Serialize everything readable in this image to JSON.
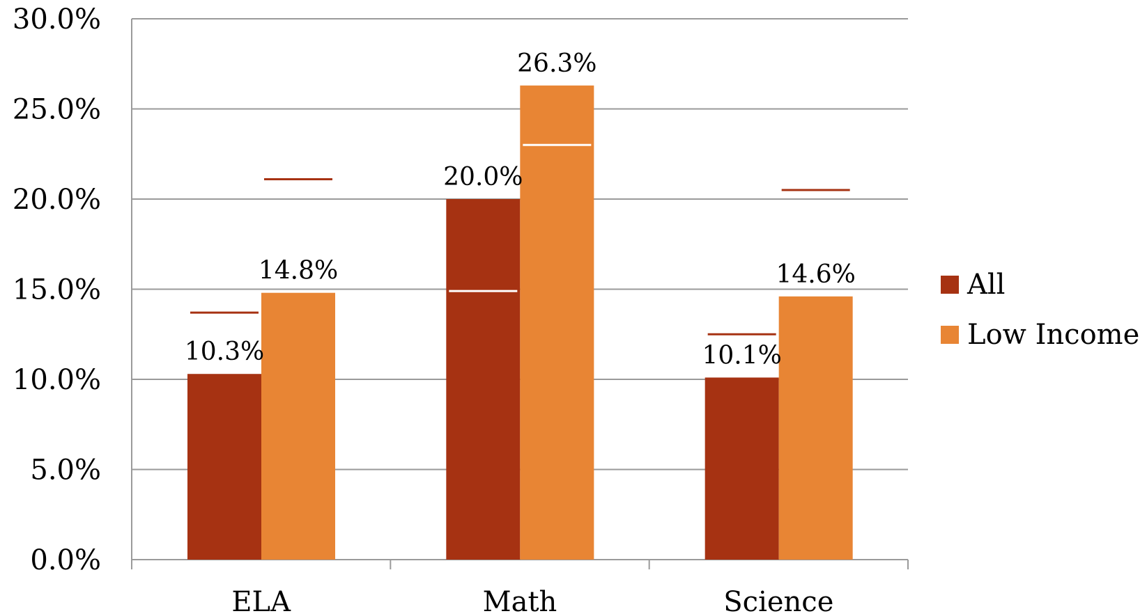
{
  "chart_data": {
    "type": "bar",
    "title": "",
    "xlabel": "",
    "ylabel": "",
    "categories": [
      "ELA",
      "Math",
      "Science"
    ],
    "series": [
      {
        "name": "All",
        "values": [
          10.3,
          20.0,
          10.1
        ],
        "color": "#A63212",
        "labels": [
          "10.3%",
          "20.0%",
          "10.1%"
        ]
      },
      {
        "name": "Low Income",
        "values": [
          14.8,
          26.3,
          14.6
        ],
        "color": "#E88534",
        "labels": [
          "14.8%",
          "26.3%",
          "14.6%"
        ]
      }
    ],
    "markers": [
      {
        "category": "ELA",
        "series": "All",
        "value": 13.7,
        "color": "#A63212"
      },
      {
        "category": "ELA",
        "series": "Low Income",
        "value": 21.1,
        "color": "#A63212"
      },
      {
        "category": "Math",
        "series": "All",
        "value": 14.9,
        "color": "#ffffff"
      },
      {
        "category": "Math",
        "series": "Low Income",
        "value": 23.0,
        "color": "#ffffff"
      },
      {
        "category": "Science",
        "series": "All",
        "value": 12.5,
        "color": "#A63212"
      },
      {
        "category": "Science",
        "series": "Low Income",
        "value": 20.5,
        "color": "#A63212"
      }
    ],
    "ylim": [
      0,
      30
    ],
    "yticks": [
      0,
      5,
      10,
      15,
      20,
      25,
      30
    ],
    "ytick_labels": [
      "0.0%",
      "5.0%",
      "10.0%",
      "15.0%",
      "20.0%",
      "25.0%",
      "30.0%"
    ],
    "grid": true,
    "legend": "right",
    "gridline_color": "#9a9a9a"
  }
}
